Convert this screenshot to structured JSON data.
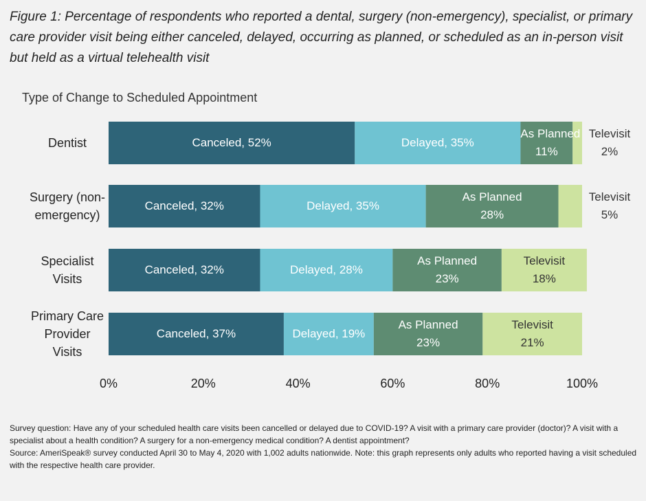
{
  "chart_data": {
    "type": "stacked_bar_horizontal",
    "title": "Figure 1: Percentage of respondents who reported a dental, surgery (non-emergency), specialist, or primary care provider visit being either canceled, delayed, occurring as planned, or scheduled as an in-person visit but held as a virtual telehealth visit",
    "subtitle": "Type of Change to Scheduled Appointment",
    "categories": [
      "Dentist",
      "Surgery (non-emergency)",
      "Specialist Visits",
      "Primary Care Provider Visits"
    ],
    "series": [
      {
        "name": "Canceled",
        "color": "#2e6478",
        "label_style": "inline",
        "values": [
          52,
          32,
          32,
          37
        ],
        "value_labels": [
          "Canceled, 52%",
          "Canceled, 32%",
          "Canceled, 32%",
          "Canceled, 37%"
        ]
      },
      {
        "name": "Delayed",
        "color": "#6fc3d2",
        "label_style": "inline",
        "values": [
          35,
          35,
          28,
          19
        ],
        "value_labels": [
          "Delayed, 35%",
          "Delayed, 35%",
          "Delayed, 28%",
          "Delayed, 19%"
        ]
      },
      {
        "name": "As Planned",
        "color": "#5e8c72",
        "label_style": "stacked",
        "values": [
          11,
          28,
          23,
          23
        ],
        "value_labels": [
          "11%",
          "28%",
          "23%",
          "23%"
        ]
      },
      {
        "name": "Televisit",
        "color": "#cde3a0",
        "label_style": "stacked",
        "values": [
          2,
          5,
          18,
          21
        ],
        "value_labels": [
          "2%",
          "5%",
          "18%",
          "21%"
        ]
      }
    ],
    "xlim": [
      0,
      100
    ],
    "xticks": [
      {
        "value": 0,
        "label": "0%"
      },
      {
        "value": 20,
        "label": "20%"
      },
      {
        "value": 40,
        "label": "40%"
      },
      {
        "value": 60,
        "label": "60%"
      },
      {
        "value": 80,
        "label": "80%"
      },
      {
        "value": 100,
        "label": "100%"
      }
    ],
    "grid": false,
    "footnotes": [
      "Survey question: Have any of your scheduled health care visits been cancelled or delayed due to COVID-19? A visit with a primary care provider (doctor)? A visit with a specialist about a health condition? A surgery for a non-emergency medical condition? A dentist appointment?",
      "Source: AmeriSpeak® survey conducted April 30 to May 4, 2020 with 1,002 adults nationwide. Note: this graph represents only adults who reported having a visit scheduled with the respective health care provider."
    ]
  }
}
